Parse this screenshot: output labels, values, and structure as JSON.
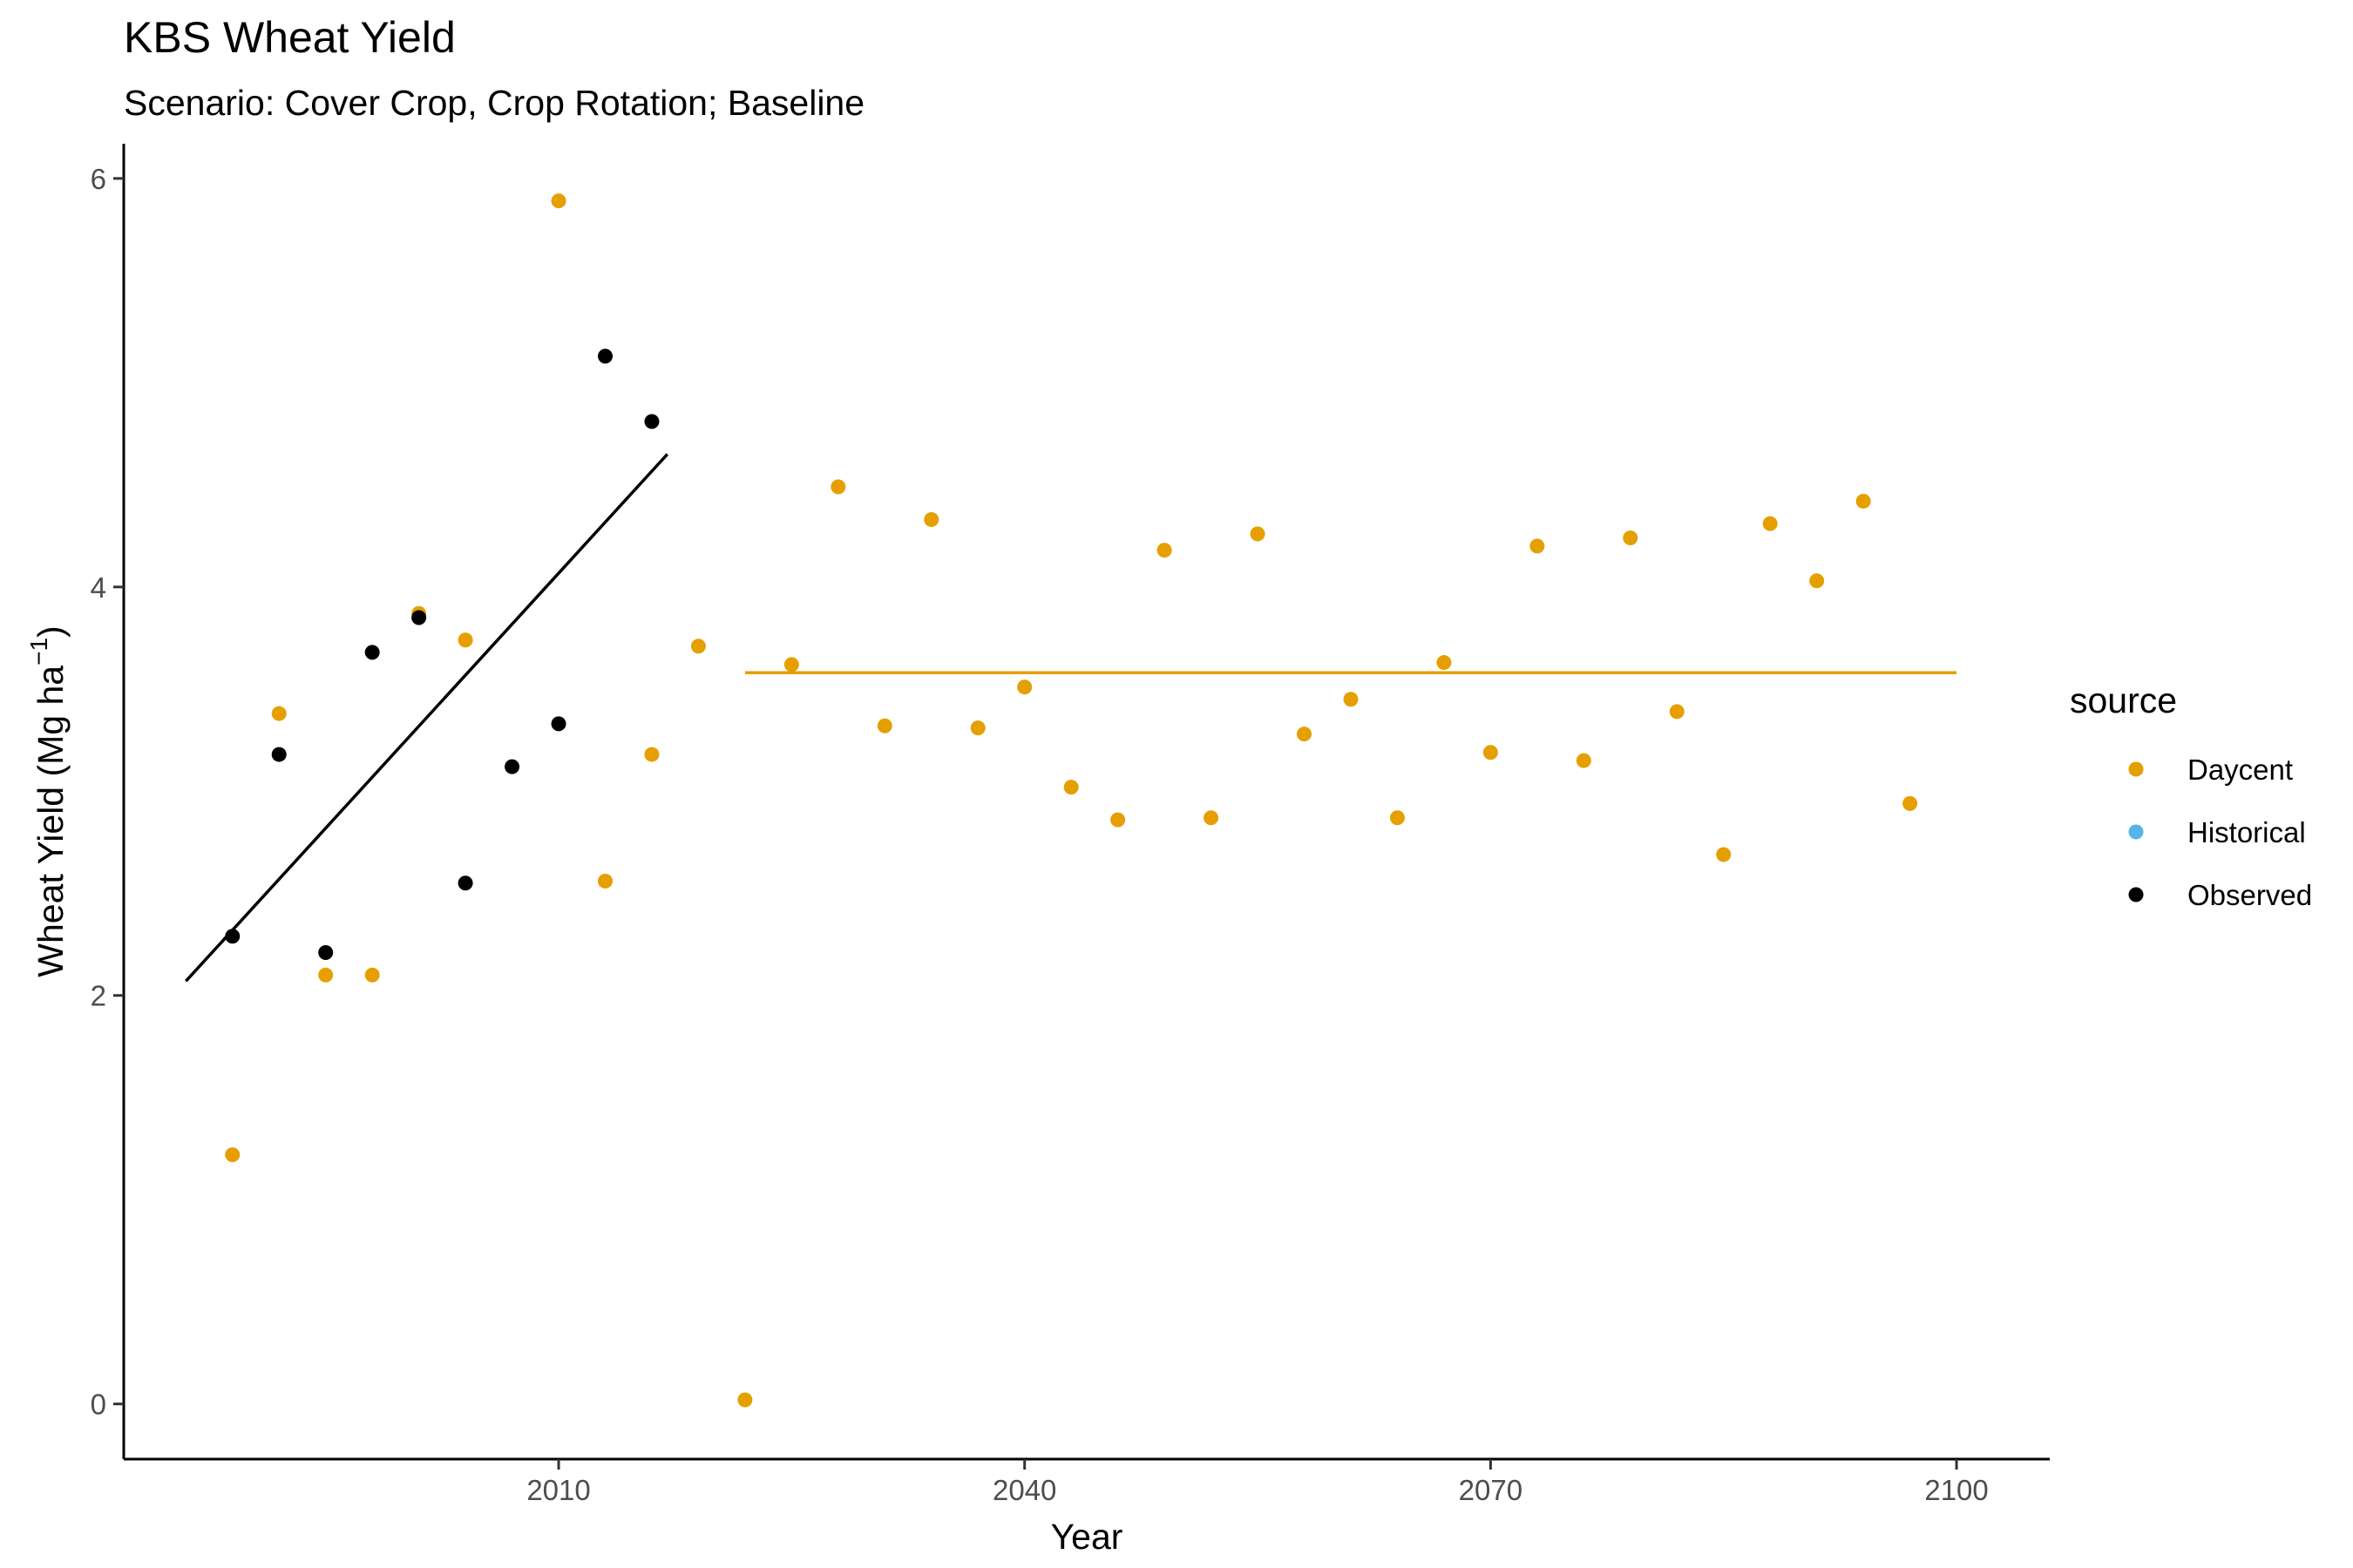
{
  "chart_data": {
    "type": "scatter",
    "title": "KBS Wheat Yield",
    "subtitle": "Scenario: Cover Crop, Crop Rotation; Baseline",
    "xlabel": "Year",
    "ylabel": "Wheat Yield (Mg ha",
    "ylabel_sup": "−1",
    "ylabel_tail": ")",
    "xlim": [
      1982,
      2106
    ],
    "ylim": [
      -0.27,
      6.17
    ],
    "xticks": [
      2010,
      2040,
      2070,
      2100
    ],
    "yticks": [
      0,
      2,
      4,
      6
    ],
    "grid": false,
    "legend": {
      "title": "source",
      "position": "right",
      "entries": [
        {
          "label": "Daycent",
          "color": "#E69F00"
        },
        {
          "label": "Historical",
          "color": "#56B4E9"
        },
        {
          "label": "Observed",
          "color": "#000000"
        }
      ]
    },
    "series": [
      {
        "name": "Daycent",
        "color": "#E69F00",
        "x": [
          1989,
          1992,
          1995,
          1998,
          2001,
          2004,
          2010,
          2013,
          2016,
          2019,
          2022,
          2025,
          2028,
          2031,
          2034,
          2037,
          2040,
          2043,
          2046,
          2049,
          2052,
          2055,
          2058,
          2061,
          2064,
          2067,
          2070,
          2073,
          2076,
          2079,
          2082,
          2085,
          2088,
          2091,
          2094,
          2097
        ],
        "y": [
          1.22,
          3.38,
          2.1,
          2.1,
          3.87,
          3.74,
          5.89,
          2.56,
          3.18,
          3.71,
          0.02,
          3.62,
          4.49,
          3.32,
          4.33,
          3.31,
          3.51,
          3.02,
          2.86,
          4.18,
          2.87,
          4.26,
          3.28,
          3.45,
          2.87,
          3.63,
          3.19,
          4.2,
          3.15,
          4.24,
          3.39,
          2.69,
          4.31,
          4.03,
          4.42,
          2.94
        ]
      },
      {
        "name": "Observed",
        "color": "#000000",
        "x": [
          1989,
          1992,
          1995,
          1998,
          2001,
          2004,
          2007,
          2010,
          2013,
          2016
        ],
        "y": [
          2.29,
          3.18,
          2.21,
          3.68,
          3.85,
          2.55,
          3.12,
          3.33,
          5.13,
          4.81
        ]
      }
    ],
    "trendlines": [
      {
        "name": "Observed",
        "color": "#000000",
        "x": [
          1986,
          2017
        ],
        "y": [
          2.07,
          4.65
        ]
      },
      {
        "name": "Daycent",
        "color": "#E69F00",
        "x": [
          2022,
          2100
        ],
        "y": [
          3.58,
          3.58
        ]
      }
    ]
  }
}
